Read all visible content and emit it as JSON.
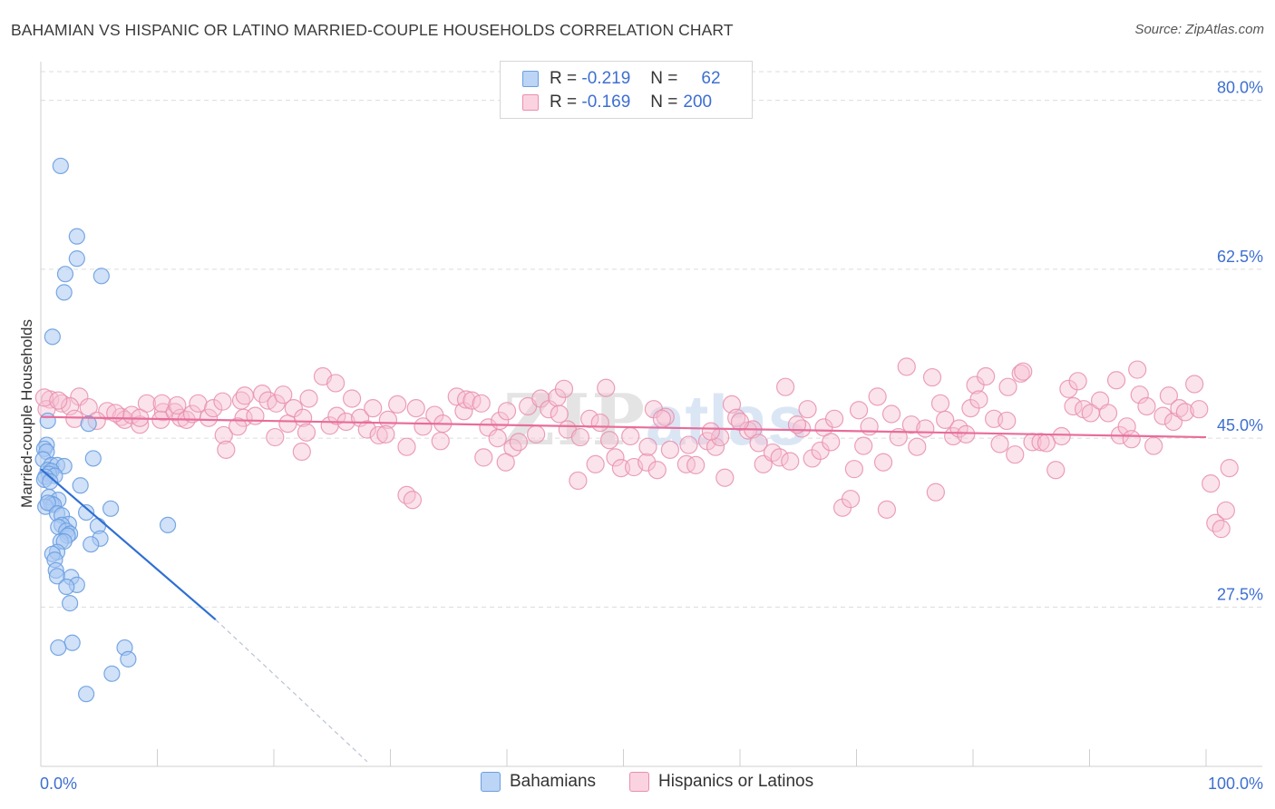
{
  "header": {
    "title": "BAHAMIAN VS HISPANIC OR LATINO MARRIED-COUPLE HOUSEHOLDS CORRELATION CHART",
    "source": "Source: ZipAtlas.com"
  },
  "legend": {
    "series1": {
      "r_label": "R =",
      "r_value": "-0.219",
      "n_label": "N =",
      "n_value": "62"
    },
    "series2": {
      "r_label": "R =",
      "r_value": "-0.169",
      "n_label": "N =",
      "n_value": "200"
    }
  },
  "colors": {
    "blue_fill": "#a9c8f2",
    "blue_stroke": "#6a9fe0",
    "blue_line": "#2f6fd3",
    "pink_fill": "#f7c0d2",
    "pink_stroke": "#e88fae",
    "pink_line": "#e86d9a",
    "grid": "#dcdcdc",
    "axis_text": "#3d6fd1"
  },
  "chart_data": {
    "type": "scatter",
    "title": "BAHAMIAN VS HISPANIC OR LATINO MARRIED-COUPLE HOUSEHOLDS CORRELATION CHART",
    "xlabel": "",
    "ylabel": "Married-couple Households",
    "xlim": [
      0,
      100
    ],
    "ylim": [
      11,
      84
    ],
    "x_tick_labels": [
      "0.0%",
      "100.0%"
    ],
    "y_ticks": [
      27.5,
      45.0,
      62.5,
      80.0
    ],
    "y_tick_labels": [
      "27.5%",
      "45.0%",
      "62.5%",
      "80.0%"
    ],
    "grid": true,
    "legend_position": "bottom",
    "series": [
      {
        "name": "Bahamians",
        "r": -0.219,
        "n": 62,
        "trend": {
          "x": [
            0,
            15
          ],
          "y": [
            41.8,
            26.2
          ],
          "dashed_extension_to": [
            28,
            11.5
          ]
        },
        "points": [
          [
            1.7,
            73.2
          ],
          [
            3.1,
            65.9
          ],
          [
            3.1,
            63.6
          ],
          [
            2.1,
            62.0
          ],
          [
            5.2,
            61.8
          ],
          [
            2.0,
            60.1
          ],
          [
            1.0,
            55.5
          ],
          [
            4.1,
            46.5
          ],
          [
            0.6,
            46.8
          ],
          [
            0.5,
            44.3
          ],
          [
            0.3,
            43.9
          ],
          [
            0.5,
            43.6
          ],
          [
            0.2,
            42.8
          ],
          [
            0.9,
            42.2
          ],
          [
            1.4,
            42.2
          ],
          [
            2.0,
            42.1
          ],
          [
            0.6,
            41.7
          ],
          [
            0.9,
            41.6
          ],
          [
            0.7,
            41.3
          ],
          [
            1.2,
            41.1
          ],
          [
            0.4,
            41.0
          ],
          [
            0.3,
            40.7
          ],
          [
            4.5,
            42.9
          ],
          [
            3.4,
            40.1
          ],
          [
            0.7,
            38.9
          ],
          [
            1.5,
            38.6
          ],
          [
            0.9,
            38.2
          ],
          [
            1.1,
            38.1
          ],
          [
            0.4,
            37.9
          ],
          [
            0.6,
            38.3
          ],
          [
            6.0,
            37.7
          ],
          [
            3.9,
            37.3
          ],
          [
            1.4,
            37.2
          ],
          [
            1.8,
            37.0
          ],
          [
            2.4,
            36.1
          ],
          [
            1.8,
            36.0
          ],
          [
            1.5,
            35.8
          ],
          [
            2.2,
            35.4
          ],
          [
            2.5,
            35.1
          ],
          [
            2.3,
            34.9
          ],
          [
            4.9,
            35.9
          ],
          [
            10.9,
            36.0
          ],
          [
            5.1,
            34.6
          ],
          [
            1.7,
            34.3
          ],
          [
            2.0,
            34.3
          ],
          [
            4.3,
            34.0
          ],
          [
            1.4,
            33.2
          ],
          [
            1.0,
            33.0
          ],
          [
            1.2,
            32.4
          ],
          [
            1.3,
            31.3
          ],
          [
            1.4,
            30.7
          ],
          [
            2.6,
            30.6
          ],
          [
            3.1,
            29.8
          ],
          [
            2.2,
            29.6
          ],
          [
            2.5,
            27.9
          ],
          [
            2.7,
            23.8
          ],
          [
            1.5,
            23.3
          ],
          [
            7.2,
            23.3
          ],
          [
            7.5,
            22.1
          ],
          [
            6.1,
            20.6
          ],
          [
            3.9,
            18.5
          ],
          [
            0.8,
            40.5
          ]
        ]
      },
      {
        "name": "Hispanics or Latinos",
        "r": -0.169,
        "n": 200,
        "trend": {
          "x": [
            0,
            100
          ],
          "y": [
            47.2,
            45.1
          ]
        },
        "points": [
          [
            3.3,
            49.3
          ],
          [
            0.8,
            49.0
          ],
          [
            1.8,
            48.6
          ],
          [
            2.5,
            48.3
          ],
          [
            4.1,
            48.2
          ],
          [
            0.5,
            48.0
          ],
          [
            5.7,
            47.8
          ],
          [
            4.8,
            46.8
          ],
          [
            6.9,
            47.2
          ],
          [
            7.2,
            46.9
          ],
          [
            7.8,
            47.4
          ],
          [
            8.5,
            46.4
          ],
          [
            8.5,
            47.1
          ],
          [
            9.1,
            48.6
          ],
          [
            10.5,
            47.7
          ],
          [
            10.3,
            46.9
          ],
          [
            10.4,
            48.6
          ],
          [
            11.5,
            47.7
          ],
          [
            12.0,
            47.1
          ],
          [
            12.5,
            46.9
          ],
          [
            13.0,
            47.5
          ],
          [
            13.5,
            48.6
          ],
          [
            14.4,
            47.1
          ],
          [
            14.8,
            48.1
          ],
          [
            15.6,
            48.8
          ],
          [
            15.7,
            45.3
          ],
          [
            15.9,
            43.8
          ],
          [
            17.2,
            48.9
          ],
          [
            17.4,
            47.1
          ],
          [
            17.5,
            49.4
          ],
          [
            18.4,
            47.3
          ],
          [
            19.0,
            49.6
          ],
          [
            19.5,
            48.9
          ],
          [
            20.1,
            45.1
          ],
          [
            20.2,
            48.6
          ],
          [
            21.2,
            46.5
          ],
          [
            21.7,
            48.1
          ],
          [
            22.5,
            47.1
          ],
          [
            22.8,
            45.6
          ],
          [
            23.0,
            49.1
          ],
          [
            22.4,
            43.6
          ],
          [
            24.2,
            51.4
          ],
          [
            24.8,
            46.3
          ],
          [
            25.4,
            47.3
          ],
          [
            26.2,
            46.7
          ],
          [
            26.7,
            49.1
          ],
          [
            27.4,
            47.1
          ],
          [
            28.0,
            45.9
          ],
          [
            28.5,
            48.1
          ],
          [
            29.0,
            45.3
          ],
          [
            29.8,
            46.9
          ],
          [
            30.6,
            48.5
          ],
          [
            31.4,
            44.1
          ],
          [
            31.4,
            39.1
          ],
          [
            31.9,
            38.6
          ],
          [
            32.2,
            48.1
          ],
          [
            32.8,
            46.2
          ],
          [
            33.8,
            47.4
          ],
          [
            34.5,
            46.5
          ],
          [
            35.7,
            49.3
          ],
          [
            36.3,
            47.8
          ],
          [
            36.5,
            49.0
          ],
          [
            37.0,
            48.9
          ],
          [
            37.8,
            48.6
          ],
          [
            38.0,
            43.0
          ],
          [
            38.4,
            46.1
          ],
          [
            39.2,
            45.0
          ],
          [
            39.4,
            46.8
          ],
          [
            40.0,
            47.8
          ],
          [
            40.5,
            44.0
          ],
          [
            41.0,
            44.6
          ],
          [
            41.8,
            48.3
          ],
          [
            42.5,
            45.4
          ],
          [
            42.9,
            49.1
          ],
          [
            43.6,
            48.0
          ],
          [
            44.3,
            49.2
          ],
          [
            44.5,
            47.5
          ],
          [
            45.2,
            45.9
          ],
          [
            46.1,
            40.6
          ],
          [
            46.3,
            45.1
          ],
          [
            47.1,
            47.0
          ],
          [
            47.6,
            42.3
          ],
          [
            48.0,
            46.6
          ],
          [
            48.8,
            44.8
          ],
          [
            49.3,
            43.0
          ],
          [
            49.8,
            41.9
          ],
          [
            50.6,
            45.2
          ],
          [
            50.9,
            42.0
          ],
          [
            52.0,
            42.5
          ],
          [
            52.1,
            44.1
          ],
          [
            52.6,
            48.0
          ],
          [
            52.9,
            41.7
          ],
          [
            53.6,
            47.2
          ],
          [
            54.0,
            43.8
          ],
          [
            55.4,
            42.3
          ],
          [
            55.6,
            44.3
          ],
          [
            56.2,
            42.2
          ],
          [
            57.2,
            44.7
          ],
          [
            57.9,
            44.1
          ],
          [
            58.3,
            45.1
          ],
          [
            58.7,
            40.9
          ],
          [
            59.3,
            48.5
          ],
          [
            59.7,
            47.1
          ],
          [
            60.7,
            45.8
          ],
          [
            61.1,
            45.9
          ],
          [
            61.6,
            44.5
          ],
          [
            62.0,
            42.3
          ],
          [
            62.8,
            43.5
          ],
          [
            63.4,
            43.0
          ],
          [
            63.9,
            50.3
          ],
          [
            64.3,
            42.6
          ],
          [
            65.3,
            46.0
          ],
          [
            65.8,
            48.0
          ],
          [
            66.2,
            42.9
          ],
          [
            66.9,
            43.7
          ],
          [
            67.2,
            46.1
          ],
          [
            67.8,
            44.6
          ],
          [
            68.1,
            47.0
          ],
          [
            68.8,
            37.8
          ],
          [
            69.5,
            38.7
          ],
          [
            69.8,
            41.8
          ],
          [
            70.6,
            44.2
          ],
          [
            71.1,
            46.2
          ],
          [
            71.8,
            49.3
          ],
          [
            72.3,
            42.5
          ],
          [
            72.6,
            37.6
          ],
          [
            73.0,
            47.5
          ],
          [
            73.6,
            45.1
          ],
          [
            74.7,
            46.4
          ],
          [
            75.2,
            44.1
          ],
          [
            75.9,
            46.0
          ],
          [
            76.5,
            51.3
          ],
          [
            76.8,
            39.4
          ],
          [
            77.6,
            46.9
          ],
          [
            78.3,
            45.2
          ],
          [
            78.8,
            46.0
          ],
          [
            79.4,
            45.4
          ],
          [
            79.8,
            48.1
          ],
          [
            80.2,
            50.5
          ],
          [
            80.5,
            49.0
          ],
          [
            81.1,
            51.4
          ],
          [
            81.8,
            47.0
          ],
          [
            82.3,
            44.4
          ],
          [
            82.9,
            46.8
          ],
          [
            83.6,
            43.3
          ],
          [
            84.1,
            51.7
          ],
          [
            84.3,
            51.9
          ],
          [
            85.1,
            44.6
          ],
          [
            85.8,
            44.6
          ],
          [
            86.3,
            44.5
          ],
          [
            87.1,
            41.7
          ],
          [
            87.6,
            45.2
          ],
          [
            88.2,
            50.1
          ],
          [
            88.6,
            48.3
          ],
          [
            89.0,
            50.9
          ],
          [
            89.5,
            48.0
          ],
          [
            90.1,
            47.6
          ],
          [
            90.9,
            48.9
          ],
          [
            91.6,
            47.6
          ],
          [
            92.3,
            51.0
          ],
          [
            92.6,
            45.3
          ],
          [
            93.2,
            46.2
          ],
          [
            93.6,
            44.9
          ],
          [
            94.1,
            52.1
          ],
          [
            94.3,
            49.5
          ],
          [
            94.9,
            48.3
          ],
          [
            95.5,
            44.2
          ],
          [
            96.3,
            47.3
          ],
          [
            96.8,
            49.4
          ],
          [
            97.2,
            46.7
          ],
          [
            97.7,
            48.1
          ],
          [
            98.2,
            47.7
          ],
          [
            99.0,
            50.6
          ],
          [
            99.4,
            48.0
          ],
          [
            100.4,
            40.3
          ],
          [
            100.8,
            36.2
          ],
          [
            101.3,
            35.6
          ],
          [
            102.0,
            41.9
          ],
          [
            101.7,
            37.5
          ],
          [
            0.3,
            49.2
          ],
          [
            1.5,
            48.9
          ],
          [
            2.9,
            47.0
          ],
          [
            6.4,
            47.6
          ],
          [
            11.7,
            48.4
          ],
          [
            16.9,
            46.2
          ],
          [
            20.8,
            49.5
          ],
          [
            25.3,
            50.7
          ],
          [
            29.6,
            45.4
          ],
          [
            34.3,
            44.7
          ],
          [
            39.9,
            42.5
          ],
          [
            44.9,
            50.1
          ],
          [
            48.5,
            50.2
          ],
          [
            53.3,
            47.0
          ],
          [
            57.5,
            45.7
          ],
          [
            60.0,
            46.7
          ],
          [
            64.9,
            46.4
          ],
          [
            70.2,
            47.9
          ],
          [
            74.3,
            52.4
          ],
          [
            77.2,
            48.6
          ],
          [
            83.0,
            50.3
          ]
        ]
      }
    ]
  },
  "bottom_legend": {
    "items": [
      {
        "label": "Bahamians"
      },
      {
        "label": "Hispanics or Latinos"
      }
    ]
  },
  "watermark": "ZIPatlas"
}
